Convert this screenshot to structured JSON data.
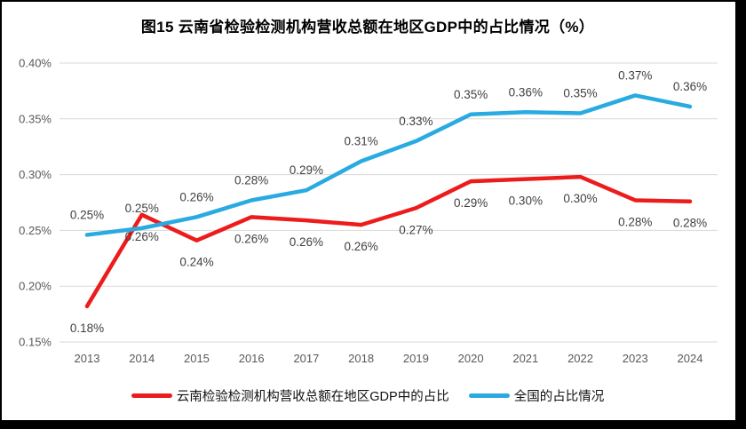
{
  "chart_data": {
    "type": "line",
    "title": "图15 云南省检验检测机构营收总额在地区GDP中的占比情况（%）",
    "categories": [
      "2013",
      "2014",
      "2015",
      "2016",
      "2017",
      "2018",
      "2019",
      "2020",
      "2021",
      "2022",
      "2023",
      "2024"
    ],
    "series": [
      {
        "name": "云南检验检测机构营收总额在地区GDP中的占比",
        "color": "#ED1C1C",
        "values": [
          0.182,
          0.264,
          0.241,
          0.262,
          0.259,
          0.255,
          0.27,
          0.294,
          0.296,
          0.298,
          0.277,
          0.276
        ],
        "data_labels": [
          "0.18%",
          "0.26%",
          "0.24%",
          "0.26%",
          "0.26%",
          "0.26%",
          "0.27%",
          "0.29%",
          "0.30%",
          "0.30%",
          "0.28%",
          "0.28%"
        ],
        "label_position": "below"
      },
      {
        "name": "全国的占比情况",
        "color": "#29AAE1",
        "values": [
          0.246,
          0.252,
          0.262,
          0.277,
          0.286,
          0.312,
          0.33,
          0.354,
          0.356,
          0.355,
          0.371,
          0.361
        ],
        "data_labels": [
          "0.25%",
          "0.25%",
          "0.26%",
          "0.28%",
          "0.29%",
          "0.31%",
          "0.33%",
          "0.35%",
          "0.36%",
          "0.35%",
          "0.37%",
          "0.36%"
        ],
        "label_position": "above"
      }
    ],
    "y_axis": {
      "min": 0.15,
      "max": 0.4,
      "step": 0.05,
      "tick_labels": [
        "0.15%",
        "0.20%",
        "0.25%",
        "0.30%",
        "0.35%",
        "0.40%"
      ]
    },
    "grid": true,
    "legend_position": "bottom",
    "colors": {
      "gridline": "#D9D9D9",
      "axis_text": "#595959",
      "data_label_text": "#404040"
    }
  }
}
